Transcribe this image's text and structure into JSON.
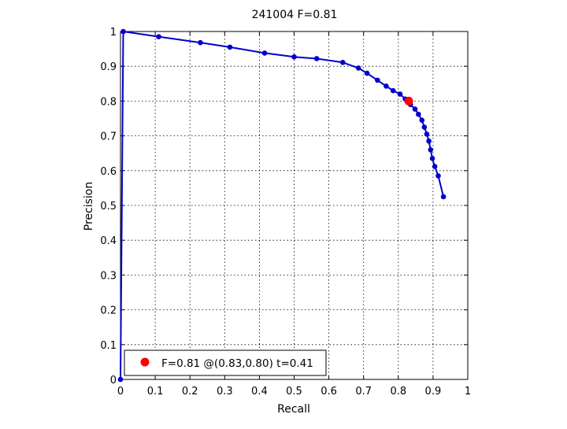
{
  "chart_data": {
    "type": "line",
    "title": "241004 F=0.81",
    "xlabel": "Recall",
    "ylabel": "Precision",
    "xlim": [
      0,
      1
    ],
    "ylim": [
      0,
      1
    ],
    "grid": true,
    "x_ticks": [
      "0",
      "0.1",
      "0.2",
      "0.3",
      "0.4",
      "0.5",
      "0.6",
      "0.7",
      "0.8",
      "0.9",
      "1"
    ],
    "y_ticks": [
      "0",
      "0.1",
      "0.2",
      "0.3",
      "0.4",
      "0.5",
      "0.6",
      "0.7",
      "0.8",
      "0.9",
      "1"
    ],
    "series": [
      {
        "color": "#0000cc",
        "points": [
          [
            0.0,
            0.0
          ],
          [
            0.008,
            1.0
          ],
          [
            0.11,
            0.985
          ],
          [
            0.23,
            0.968
          ],
          [
            0.315,
            0.955
          ],
          [
            0.415,
            0.938
          ],
          [
            0.5,
            0.927
          ],
          [
            0.565,
            0.922
          ],
          [
            0.64,
            0.911
          ],
          [
            0.685,
            0.895
          ],
          [
            0.71,
            0.88
          ],
          [
            0.74,
            0.86
          ],
          [
            0.765,
            0.843
          ],
          [
            0.785,
            0.83
          ],
          [
            0.805,
            0.82
          ],
          [
            0.82,
            0.806
          ],
          [
            0.835,
            0.79
          ],
          [
            0.848,
            0.777
          ],
          [
            0.858,
            0.762
          ],
          [
            0.868,
            0.745
          ],
          [
            0.875,
            0.725
          ],
          [
            0.882,
            0.705
          ],
          [
            0.888,
            0.685
          ],
          [
            0.893,
            0.66
          ],
          [
            0.898,
            0.635
          ],
          [
            0.905,
            0.612
          ],
          [
            0.915,
            0.585
          ],
          [
            0.93,
            0.525
          ]
        ]
      }
    ],
    "highlight": {
      "x": 0.83,
      "y": 0.8,
      "color": "#ff0000"
    },
    "legend": {
      "label": "F=0.81 @(0.83,0.80) t=0.41",
      "position": "bottom-left"
    }
  }
}
